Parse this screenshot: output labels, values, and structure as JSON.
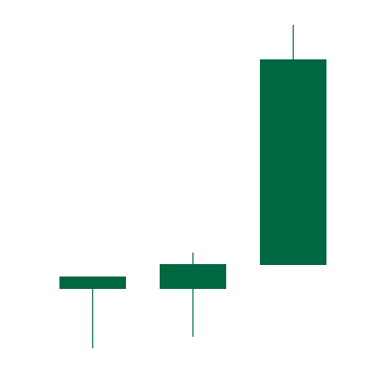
{
  "chart_data": {
    "type": "candlestick",
    "categories": [
      null,
      null,
      null
    ],
    "open": [
      96,
      96,
      123
    ],
    "high": [
      110,
      137,
      394
    ],
    "low": [
      29,
      42,
      123
    ],
    "close": [
      110,
      124,
      355
    ],
    "color": "#006840",
    "ylim": [
      0,
      422
    ]
  }
}
